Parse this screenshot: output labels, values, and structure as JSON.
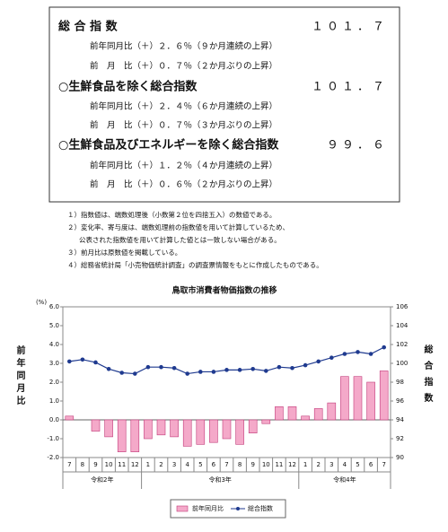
{
  "summary": [
    {
      "label": "総 合 指 数",
      "value": "１０１．７",
      "details": [
        "前年同月比（＋）２．６％（９か月連続の上昇）",
        "前　月　比（＋）０．７％（２か月ぶりの上昇）"
      ]
    },
    {
      "label": "○生鮮食品を除く総合指数",
      "value": "１０１．７",
      "details": [
        "前年同月比（＋）２．４％（６か月連続の上昇）",
        "前　月　比（＋）０．７％（３か月ぶりの上昇）"
      ]
    },
    {
      "label": "○生鮮食品及びエネルギーを除く総合指数",
      "value": "９９．６",
      "details": [
        "前年同月比（＋）１．２％（４か月連続の上昇）",
        "前　月　比（＋）０．６％（２か月ぶりの上昇）"
      ]
    }
  ],
  "notes": [
    "１）指数値は、端数処理後（小数第２位を四捨五入）の数値である。",
    "２）変化率、寄与度は、端数処理前の指数値を用いて計算しているため、",
    "公表された指数値を用いて計算した値とは一致しない場合がある。",
    "３）前月比は原数値を掲載している。",
    "４）総務省統計局「小売物価統計調査」の調査票情報をもとに作成したものである。"
  ],
  "chart_data": {
    "type": "bar-line",
    "title": "鳥取市消費者物価指数の推移",
    "ylabel": "前年同月比",
    "yunit": "(%)",
    "y2label": "総合指数",
    "category_groups": [
      {
        "label": "令和2年",
        "categories": [
          "7",
          "8",
          "9",
          "10",
          "11",
          "12"
        ]
      },
      {
        "label": "令和3年",
        "categories": [
          "1",
          "2",
          "3",
          "4",
          "5",
          "6",
          "7",
          "8",
          "9",
          "10",
          "11",
          "12"
        ]
      },
      {
        "label": "令和4年",
        "categories": [
          "1",
          "2",
          "3",
          "4",
          "5",
          "6",
          "7"
        ]
      }
    ],
    "series": [
      {
        "name": "前年同月比",
        "type": "bar",
        "color": "#f4a9c9",
        "values": [
          0.2,
          0,
          -0.6,
          -0.9,
          -1.7,
          -1.7,
          -1.0,
          -0.8,
          -0.9,
          -1.4,
          -1.3,
          -1.2,
          -1.0,
          -1.3,
          -0.7,
          -0.2,
          0.7,
          0.7,
          0.2,
          0.6,
          0.9,
          2.3,
          2.3,
          2.0,
          2.6
        ]
      },
      {
        "name": "総合指数",
        "type": "line",
        "axis": "y2",
        "color": "#1f3a8f",
        "values": [
          100.2,
          100.4,
          100.1,
          99.4,
          99.0,
          98.9,
          99.6,
          99.6,
          99.5,
          98.9,
          99.1,
          99.1,
          99.3,
          99.3,
          99.4,
          99.2,
          99.6,
          99.5,
          99.8,
          100.2,
          100.6,
          101.0,
          101.2,
          101.0,
          101.7
        ]
      }
    ],
    "ylim": [
      -2,
      6
    ],
    "yticks": [
      {
        "value": -2,
        "label": "-2.0"
      },
      {
        "value": -1,
        "label": "-1.0"
      },
      {
        "value": 0,
        "label": "0.0"
      },
      {
        "value": 1,
        "label": "1.0"
      },
      {
        "value": 2,
        "label": "2.0"
      },
      {
        "value": 3,
        "label": "3.0"
      },
      {
        "value": 4,
        "label": "4.0"
      },
      {
        "value": 5,
        "label": "5.0"
      },
      {
        "value": 6,
        "label": "6.0"
      }
    ],
    "y2lim": [
      90,
      106
    ],
    "y2ticks": [
      90,
      92,
      94,
      96,
      98,
      100,
      102,
      104,
      106
    ],
    "grid": false
  }
}
